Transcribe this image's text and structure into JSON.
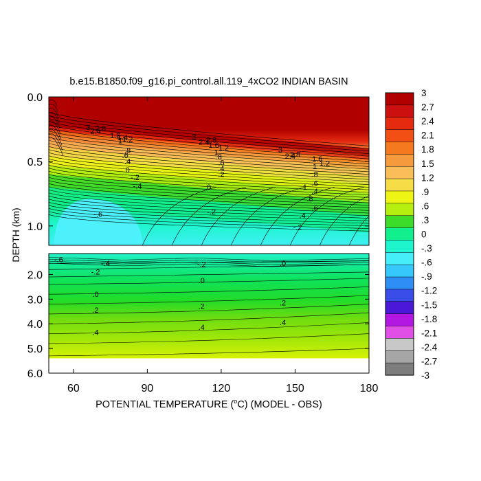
{
  "chart_data": {
    "type": "heatmap",
    "title": "b.e15.B1850.f09_g16.pi_control.all.119_4xCO2 INDIAN BASIN",
    "xlabel": "POTENTIAL TEMPERATURE (",
    "xlabel_degree": "o",
    "xlabel_rest": "C) (MODEL - OBS)",
    "ylabel": "DEPTH (km)",
    "x_ticks": [
      "60",
      "90",
      "120",
      "150",
      "180"
    ],
    "x_tick_values": [
      60,
      90,
      120,
      150,
      180
    ],
    "xlim": [
      50,
      180
    ],
    "upper_panel": {
      "ylim": [
        0,
        1.15
      ],
      "y_ticks": [
        "0.0",
        "0.5",
        "1.0"
      ],
      "y_tick_values": [
        0,
        0.5,
        1.0
      ]
    },
    "lower_panel": {
      "ylim": [
        1.15,
        6.0
      ],
      "y_ticks": [
        "2.0",
        "3.0",
        "4.0",
        "5.0",
        "6.0"
      ],
      "y_tick_values": [
        2,
        3,
        4,
        5,
        6
      ],
      "data_bottom_depth": 5.4
    },
    "colorbar": {
      "labels": [
        "3",
        "2.7",
        "2.4",
        "2.1",
        "1.8",
        "1.5",
        "1.2",
        ".9",
        ".6",
        ".3",
        "0",
        "-.3",
        "-.6",
        "-.9",
        "-1.2",
        "-1.5",
        "-1.8",
        "-2.1",
        "-2.4",
        "-2.7",
        "-3"
      ],
      "values": [
        3,
        2.7,
        2.4,
        2.1,
        1.8,
        1.5,
        1.2,
        0.9,
        0.6,
        0.3,
        0,
        -0.3,
        -0.6,
        -0.9,
        -1.2,
        -1.5,
        -1.8,
        -2.1,
        -2.4,
        -2.7,
        -3
      ],
      "colors": [
        "#b00000",
        "#cc1010",
        "#e52a10",
        "#f24f14",
        "#f5791e",
        "#f69a3e",
        "#f9bd5a",
        "#f6dd47",
        "#eef515",
        "#b4ef10",
        "#3ddc2a",
        "#12f08e",
        "#1ff5cd",
        "#46eefa",
        "#36c8fb",
        "#2f8ef6",
        "#3a4de8",
        "#4b18d8",
        "#b218e2",
        "#e04fe6",
        "#c8c8c8",
        "#a6a6a6",
        "#7d7d7d"
      ]
    },
    "contour_labels": {
      "upper": [
        {
          "text": "3",
          "x": 66,
          "d": 0.255
        },
        {
          "text": "2.8",
          "x": 71,
          "d": 0.265
        },
        {
          "text": "2.4",
          "x": 69,
          "d": 0.285
        },
        {
          "text": "1.6",
          "x": 77,
          "d": 0.32
        },
        {
          "text": "1.4",
          "x": 80,
          "d": 0.335
        },
        {
          "text": "1.2",
          "x": 82,
          "d": 0.35
        },
        {
          "text": "1",
          "x": 79,
          "d": 0.36
        },
        {
          "text": ".8",
          "x": 82,
          "d": 0.435
        },
        {
          "text": ".6",
          "x": 81,
          "d": 0.475
        },
        {
          "text": ".4",
          "x": 82,
          "d": 0.52
        },
        {
          "text": "0",
          "x": 82,
          "d": 0.585
        },
        {
          "text": "-.2",
          "x": 85,
          "d": 0.645
        },
        {
          "text": "-.4",
          "x": 86,
          "d": 0.71
        },
        {
          "text": "-.6",
          "x": 70,
          "d": 0.93
        },
        {
          "text": "3",
          "x": 109,
          "d": 0.33
        },
        {
          "text": "2.8",
          "x": 116,
          "d": 0.355
        },
        {
          "text": "2.4",
          "x": 113,
          "d": 0.37
        },
        {
          "text": "1.6",
          "x": 117,
          "d": 0.395
        },
        {
          "text": "1.2",
          "x": 121,
          "d": 0.415
        },
        {
          "text": "1",
          "x": 118,
          "d": 0.45
        },
        {
          "text": ".8",
          "x": 119,
          "d": 0.485
        },
        {
          "text": ".6",
          "x": 120,
          "d": 0.53
        },
        {
          "text": ".4",
          "x": 120,
          "d": 0.575
        },
        {
          "text": ".2",
          "x": 120,
          "d": 0.62
        },
        {
          "text": "0",
          "x": 115,
          "d": 0.72
        },
        {
          "text": "-.2",
          "x": 116,
          "d": 0.91
        },
        {
          "text": "3",
          "x": 144,
          "d": 0.43
        },
        {
          "text": "2.8",
          "x": 150,
          "d": 0.465
        },
        {
          "text": "2.4",
          "x": 148,
          "d": 0.48
        },
        {
          "text": "1.6",
          "x": 159,
          "d": 0.5
        },
        {
          "text": "1.2",
          "x": 162,
          "d": 0.535
        },
        {
          "text": "1",
          "x": 158,
          "d": 0.56
        },
        {
          "text": ".8",
          "x": 158,
          "d": 0.62
        },
        {
          "text": ".6",
          "x": 158,
          "d": 0.69
        },
        {
          "text": ".4",
          "x": 158,
          "d": 0.75
        },
        {
          "text": "1",
          "x": 154,
          "d": 0.72
        },
        {
          "text": ".8",
          "x": 156,
          "d": 0.81
        },
        {
          "text": ".6",
          "x": 158,
          "d": 0.88
        },
        {
          "text": ".4",
          "x": 153,
          "d": 0.94
        },
        {
          "text": "-.2",
          "x": 151,
          "d": 1.03
        }
      ],
      "lower": [
        {
          "text": "-.6",
          "x": 54,
          "d": 1.5
        },
        {
          "text": "-.4",
          "x": 73,
          "d": 1.65
        },
        {
          "text": "-.2",
          "x": 112,
          "d": 1.7
        },
        {
          "text": "-.2",
          "x": 69,
          "d": 2.0
        },
        {
          "text": ".0",
          "x": 145,
          "d": 1.65
        },
        {
          "text": ".0",
          "x": 112,
          "d": 2.35
        },
        {
          "text": ".0",
          "x": 69,
          "d": 2.9
        },
        {
          "text": ".2",
          "x": 145,
          "d": 3.25
        },
        {
          "text": ".2",
          "x": 112,
          "d": 3.4
        },
        {
          "text": ".2",
          "x": 69,
          "d": 3.55
        },
        {
          "text": ".4",
          "x": 145,
          "d": 4.05
        },
        {
          "text": ".4",
          "x": 112,
          "d": 4.25
        },
        {
          "text": ".4",
          "x": 69,
          "d": 4.45
        }
      ]
    }
  }
}
